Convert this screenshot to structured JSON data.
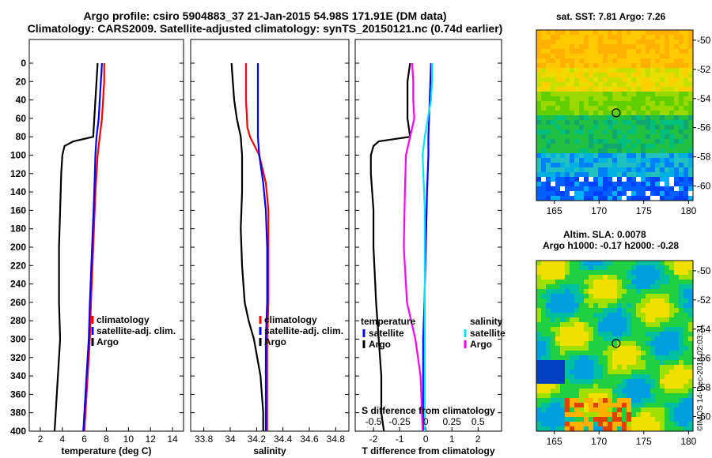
{
  "header": {
    "line1": "Argo profile: csiro 5904883_37 21-Jan-2015 54.98S 171.91E (DM data)",
    "line2": "Climatology: CARS2009. Satellite-adjusted climatology: synTS_20150121.nc (0.74d earlier)"
  },
  "colors": {
    "climatology": "#ff0000",
    "satellite": "#0000ff",
    "argo": "#000000",
    "sat_salinity": "#00e5ff",
    "argo_salinity": "#ff00ff"
  },
  "depth_ticks": [
    "0",
    "20",
    "40",
    "60",
    "80",
    "100",
    "120",
    "140",
    "160",
    "180",
    "200",
    "220",
    "240",
    "260",
    "280",
    "300",
    "320",
    "340",
    "360",
    "380",
    "400"
  ],
  "maps": {
    "sst_title": "sat. SST: 7.81 Argo: 7.26",
    "sla_title1": "Altim. SLA: 0.0078",
    "sla_title2": "Argo h1000: -0.17 h2000: -0.28",
    "lon_ticks": [
      "165",
      "170",
      "175",
      "180"
    ],
    "lat_ticks": [
      "-50",
      "-52",
      "-54",
      "-56",
      "-58",
      "-60"
    ],
    "float_position": {
      "lon": 171.91,
      "lat": -54.98
    }
  },
  "watermark": "©IMOS 14-Dec-2018 02:03:31",
  "chart_data": [
    {
      "type": "line",
      "name": "temperature",
      "xlabel": "temperature (deg C)",
      "xlim": [
        1,
        15
      ],
      "ylim": [
        0,
        400
      ],
      "xticks": [
        "2",
        "4",
        "6",
        "8",
        "10",
        "12",
        "14"
      ],
      "legend": [
        "climatology",
        "satellite-adj. clim.",
        "Argo"
      ],
      "series": [
        {
          "name": "climatology",
          "depth": [
            0,
            20,
            40,
            60,
            80,
            100,
            140,
            200,
            260,
            300,
            340,
            400
          ],
          "values": [
            7.8,
            7.8,
            7.7,
            7.6,
            7.4,
            7.2,
            7.0,
            6.8,
            6.6,
            6.5,
            6.3,
            6.0
          ]
        },
        {
          "name": "satellite-adj. clim.",
          "depth": [
            0,
            20,
            40,
            60,
            80,
            100,
            140,
            200,
            260,
            300,
            340,
            400
          ],
          "values": [
            7.6,
            7.5,
            7.4,
            7.3,
            7.1,
            7.0,
            6.9,
            6.7,
            6.5,
            6.4,
            6.2,
            5.9
          ]
        },
        {
          "name": "Argo",
          "depth": [
            0,
            20,
            40,
            60,
            80,
            85,
            90,
            100,
            120,
            160,
            200,
            260,
            300,
            340,
            380,
            400
          ],
          "values": [
            7.2,
            7.1,
            7.0,
            6.9,
            6.8,
            5.0,
            4.2,
            4.0,
            3.9,
            3.8,
            3.7,
            3.7,
            3.8,
            3.6,
            3.4,
            3.3
          ]
        }
      ]
    },
    {
      "type": "line",
      "name": "salinity",
      "xlabel": "salinity",
      "xlim": [
        33.7,
        34.9
      ],
      "ylim": [
        0,
        400
      ],
      "xticks": [
        "33.8",
        "34",
        "34.2",
        "34.4",
        "34.6",
        "34.8"
      ],
      "legend": [
        "climatology",
        "satellite-adj. clim.",
        "Argo"
      ],
      "series": [
        {
          "name": "climatology",
          "depth": [
            0,
            40,
            70,
            80,
            100,
            130,
            160,
            200,
            260,
            300,
            400
          ],
          "values": [
            34.12,
            34.12,
            34.13,
            34.15,
            34.22,
            34.27,
            34.29,
            34.29,
            34.29,
            34.28,
            34.28
          ]
        },
        {
          "name": "satellite-adj. clim.",
          "depth": [
            0,
            40,
            80,
            100,
            130,
            160,
            200,
            260,
            300,
            400
          ],
          "values": [
            34.21,
            34.21,
            34.21,
            34.22,
            34.25,
            34.27,
            34.28,
            34.28,
            34.27,
            34.27
          ]
        },
        {
          "name": "Argo",
          "depth": [
            0,
            20,
            40,
            60,
            80,
            100,
            140,
            180,
            220,
            260,
            280,
            300,
            340,
            380,
            400
          ],
          "values": [
            34.01,
            34.02,
            34.03,
            34.05,
            34.08,
            34.09,
            34.09,
            34.08,
            34.09,
            34.11,
            34.14,
            34.18,
            34.23,
            34.25,
            34.25
          ]
        }
      ]
    },
    {
      "type": "line",
      "name": "difference from climatology",
      "xlabel": "T difference from climatology",
      "xlabel_top": "S difference from climatology",
      "xlim": [
        -2.7,
        2.9
      ],
      "ylim": [
        0,
        400
      ],
      "xticks": [
        "-2",
        "-1",
        "0",
        "1",
        "2"
      ],
      "xticks_top": [
        "-0.5",
        "-0.25",
        "0",
        "0.25",
        "0.5"
      ],
      "legend_temperature": {
        "title": "temperature",
        "entries": [
          "satellite",
          "Argo"
        ]
      },
      "legend_salinity": {
        "title": "salinity",
        "entries": [
          "satellite",
          "Argo"
        ]
      },
      "series": [
        {
          "name": "temperature satellite",
          "depth": [
            0,
            40,
            80,
            100,
            140,
            200,
            260,
            300,
            340,
            400
          ],
          "values": [
            0.2,
            0.15,
            0.1,
            0.1,
            0.05,
            0.0,
            -0.05,
            -0.1,
            -0.1,
            -0.1
          ]
        },
        {
          "name": "temperature Argo",
          "depth": [
            0,
            20,
            40,
            60,
            80,
            85,
            90,
            100,
            120,
            160,
            200,
            260,
            300,
            340,
            380,
            400
          ],
          "values": [
            -0.6,
            -0.7,
            -0.7,
            -0.7,
            -0.6,
            -1.8,
            -2.0,
            -2.1,
            -2.1,
            -2.0,
            -2.0,
            -1.9,
            -1.8,
            -1.7,
            -1.7,
            -1.6
          ]
        },
        {
          "name": "salinity satellite",
          "depth": [
            0,
            20,
            40,
            60,
            80,
            100,
            130,
            160,
            200,
            260,
            300,
            400
          ],
          "values": [
            0.06,
            0.06,
            0.05,
            0.02,
            -0.01,
            -0.03,
            -0.02,
            -0.01,
            -0.01,
            -0.01,
            -0.01,
            -0.01
          ]
        },
        {
          "name": "salinity Argo",
          "depth": [
            0,
            20,
            40,
            60,
            80,
            100,
            140,
            200,
            260,
            300,
            340,
            400
          ],
          "values": [
            -0.13,
            -0.12,
            -0.12,
            -0.11,
            -0.15,
            -0.19,
            -0.2,
            -0.21,
            -0.18,
            -0.1,
            -0.05,
            -0.03
          ]
        }
      ]
    }
  ]
}
